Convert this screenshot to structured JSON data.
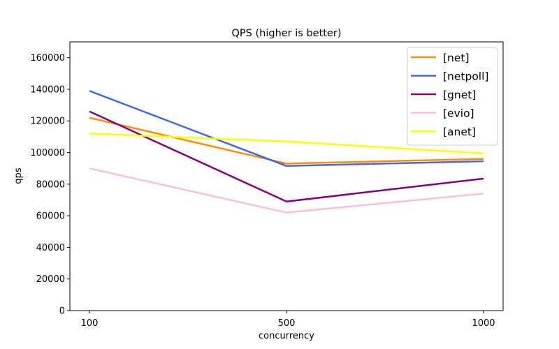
{
  "chart_data": {
    "type": "line",
    "title": "QPS (higher is better)",
    "xlabel": "concurrency",
    "ylabel": "qps",
    "x": [
      "100",
      "500",
      "1000"
    ],
    "xlim": [
      0,
      2
    ],
    "ylim": [
      0,
      170000
    ],
    "yticks": [
      0,
      20000,
      40000,
      60000,
      80000,
      100000,
      120000,
      140000,
      160000
    ],
    "grid": false,
    "legend_position": "top-right",
    "series": [
      {
        "name": "[net]",
        "color": "#ff8c00",
        "values": [
          122000,
          93000,
          96000
        ]
      },
      {
        "name": "[netpoll]",
        "color": "#4169e1",
        "values": [
          139000,
          91500,
          94500
        ]
      },
      {
        "name": "[gnet]",
        "color": "#800080",
        "values": [
          126000,
          69000,
          83500
        ]
      },
      {
        "name": "[evio]",
        "color": "#ffc0cb",
        "values": [
          90000,
          62000,
          74000
        ]
      },
      {
        "name": "[anet]",
        "color": "#ffff00",
        "values": [
          112000,
          107000,
          99500
        ]
      }
    ]
  }
}
